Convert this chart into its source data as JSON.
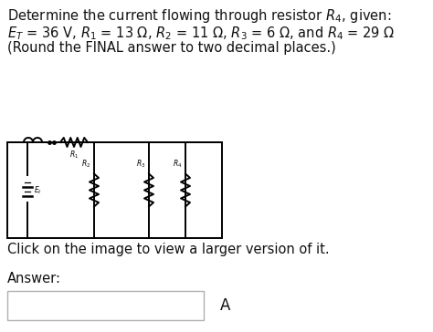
{
  "line1_plain": "Determine the current flowing through resistor ",
  "line1_R4": "$R_{4}$,",
  "line1_end": " given:",
  "line2": "$E_T$ = 36 V, $R_1$ = 13 Ω, $R_2$ = 11 Ω, $R_3$ = 6 Ω, and $R_4$ = 29 Ω",
  "line3": "(Round the FINAL answer to two decimal places.)",
  "click_text": "Click on the image to view a larger version of it.",
  "answer_label": "Answer:",
  "unit_label": "A",
  "bg_color": "#ffffff",
  "text_color": "#111111",
  "circuit_lw": 1.4,
  "font_size_main": 10.5,
  "font_size_small": 5.5
}
